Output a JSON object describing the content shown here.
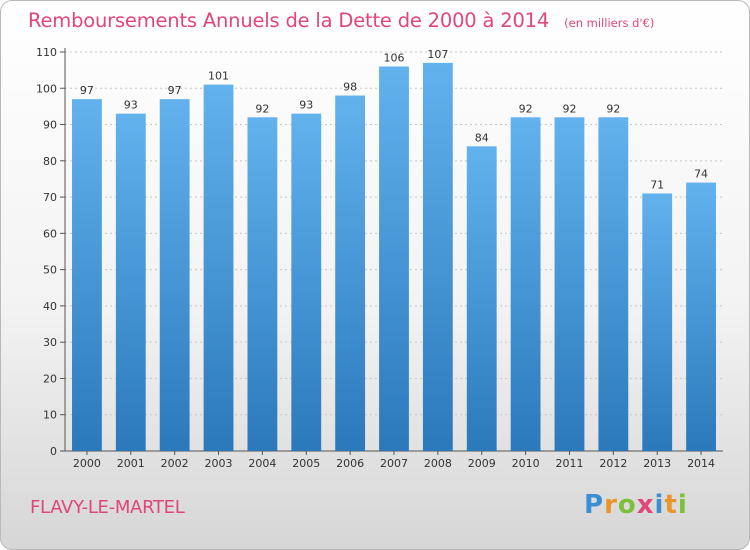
{
  "title": "Remboursements Annuels de la Dette de 2000 à 2014",
  "unit_note": "(en milliers d'€)",
  "commune": "FLAVY-LE-MARTEL",
  "brand": {
    "letters": [
      "P",
      "r",
      "o",
      "x",
      "i",
      "t",
      "i"
    ],
    "colors": [
      "#3a8fd4",
      "#e8962c",
      "#7cbf3a",
      "#e14679",
      "#3a8fd4",
      "#e8962c",
      "#7cbf3a"
    ]
  },
  "colors": {
    "title": "#e14679",
    "bar_top": "#62b2ee",
    "bar_bottom": "#2b79bb"
  },
  "chart_data": {
    "type": "bar",
    "categories": [
      "2000",
      "2001",
      "2002",
      "2003",
      "2004",
      "2005",
      "2006",
      "2007",
      "2008",
      "2009",
      "2010",
      "2011",
      "2012",
      "2013",
      "2014"
    ],
    "values": [
      97,
      93,
      97,
      101,
      92,
      93,
      98,
      106,
      107,
      84,
      92,
      92,
      92,
      71,
      74
    ],
    "yticks": [
      0,
      10,
      20,
      30,
      40,
      50,
      60,
      70,
      80,
      90,
      100,
      110
    ],
    "ylim": [
      0,
      110
    ],
    "grid": true,
    "data_labels": true
  }
}
